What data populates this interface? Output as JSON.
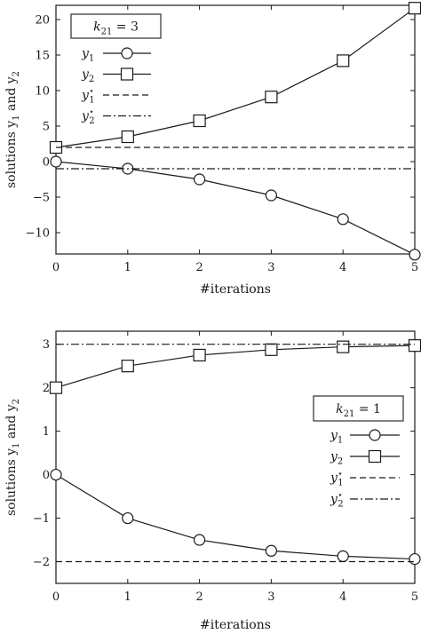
{
  "chart_data": [
    {
      "type": "line",
      "annotation": {
        "var": "k",
        "sub": "21",
        "rest": " = 3"
      },
      "xlabel": "#iterations",
      "ylabel": {
        "text": "solutions y",
        "sub1": "1",
        "mid": " and y",
        "sub2": "2"
      },
      "xlim": [
        0,
        5
      ],
      "ylim": [
        -13,
        22
      ],
      "xticks": [
        0,
        1,
        2,
        3,
        4,
        5
      ],
      "yticks": [
        -10,
        -5,
        0,
        5,
        10,
        15,
        20
      ],
      "x": [
        0,
        1,
        2,
        3,
        4,
        5
      ],
      "series": [
        {
          "name": "y",
          "sub": "1",
          "sup": "",
          "values": [
            0,
            -1,
            -2.5,
            -4.75,
            -8.1,
            -13.1
          ],
          "marker": "circle",
          "style": "solid"
        },
        {
          "name": "y",
          "sub": "2",
          "sup": "",
          "values": [
            2,
            3.5,
            5.75,
            9.1,
            14.2,
            21.6
          ],
          "marker": "square",
          "style": "solid"
        },
        {
          "name": "y",
          "sub": "1",
          "sup": "⋆",
          "values": [
            2,
            2,
            2,
            2,
            2,
            2
          ],
          "marker": "none",
          "style": "dashed"
        },
        {
          "name": "y",
          "sub": "2",
          "sup": "⋆",
          "values": [
            -1,
            -1,
            -1,
            -1,
            -1,
            -1
          ],
          "marker": "none",
          "style": "dashdot"
        }
      ],
      "legend_position": "top-left"
    },
    {
      "type": "line",
      "annotation": {
        "var": "k",
        "sub": "21",
        "rest": " = 1"
      },
      "xlabel": "#iterations",
      "ylabel": {
        "text": "solutions y",
        "sub1": "1",
        "mid": " and y",
        "sub2": "2"
      },
      "xlim": [
        0,
        5
      ],
      "ylim": [
        -2.5,
        3.3
      ],
      "xticks": [
        0,
        1,
        2,
        3,
        4,
        5
      ],
      "yticks": [
        -2,
        -1,
        0,
        1,
        2,
        3
      ],
      "x": [
        0,
        1,
        2,
        3,
        4,
        5
      ],
      "series": [
        {
          "name": "y",
          "sub": "1",
          "sup": "",
          "values": [
            0,
            -1,
            -1.5,
            -1.75,
            -1.875,
            -1.94
          ],
          "marker": "circle",
          "style": "solid"
        },
        {
          "name": "y",
          "sub": "2",
          "sup": "",
          "values": [
            2,
            2.5,
            2.75,
            2.875,
            2.94,
            2.97
          ],
          "marker": "square",
          "style": "solid"
        },
        {
          "name": "y",
          "sub": "1",
          "sup": "⋆",
          "values": [
            -2,
            -2,
            -2,
            -2,
            -2,
            -2
          ],
          "marker": "none",
          "style": "dashed"
        },
        {
          "name": "y",
          "sub": "2",
          "sup": "⋆",
          "values": [
            3,
            3,
            3,
            3,
            3,
            3
          ],
          "marker": "none",
          "style": "dashdot"
        }
      ],
      "legend_position": "center-right"
    }
  ]
}
